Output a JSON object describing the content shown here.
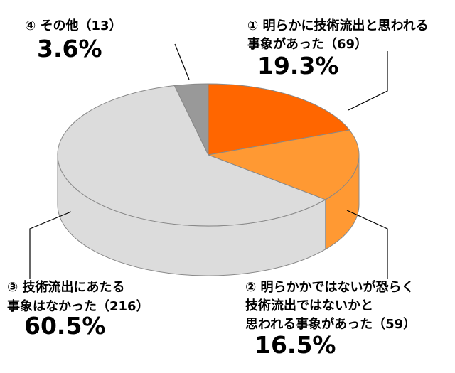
{
  "chart_data": {
    "type": "pie",
    "categories": [
      [
        "① 明らかに技術流出と思われる",
        "事象があった（69）"
      ],
      [
        "② 明らかかではないが恐らく",
        "技術流出ではないかと",
        "思われる事象があった（59）"
      ],
      [
        "③ 技術流出にあたる",
        "事象はなかった（216）"
      ],
      [
        "④ その他（13）"
      ]
    ],
    "values": [
      19.3,
      16.5,
      60.5,
      3.6
    ],
    "value_labels": [
      "19.3%",
      "16.5%",
      "60.5%",
      "3.6%"
    ],
    "colors": [
      "#ff6600",
      "#ff9933",
      "#dcdcdc",
      "#999999"
    ]
  }
}
